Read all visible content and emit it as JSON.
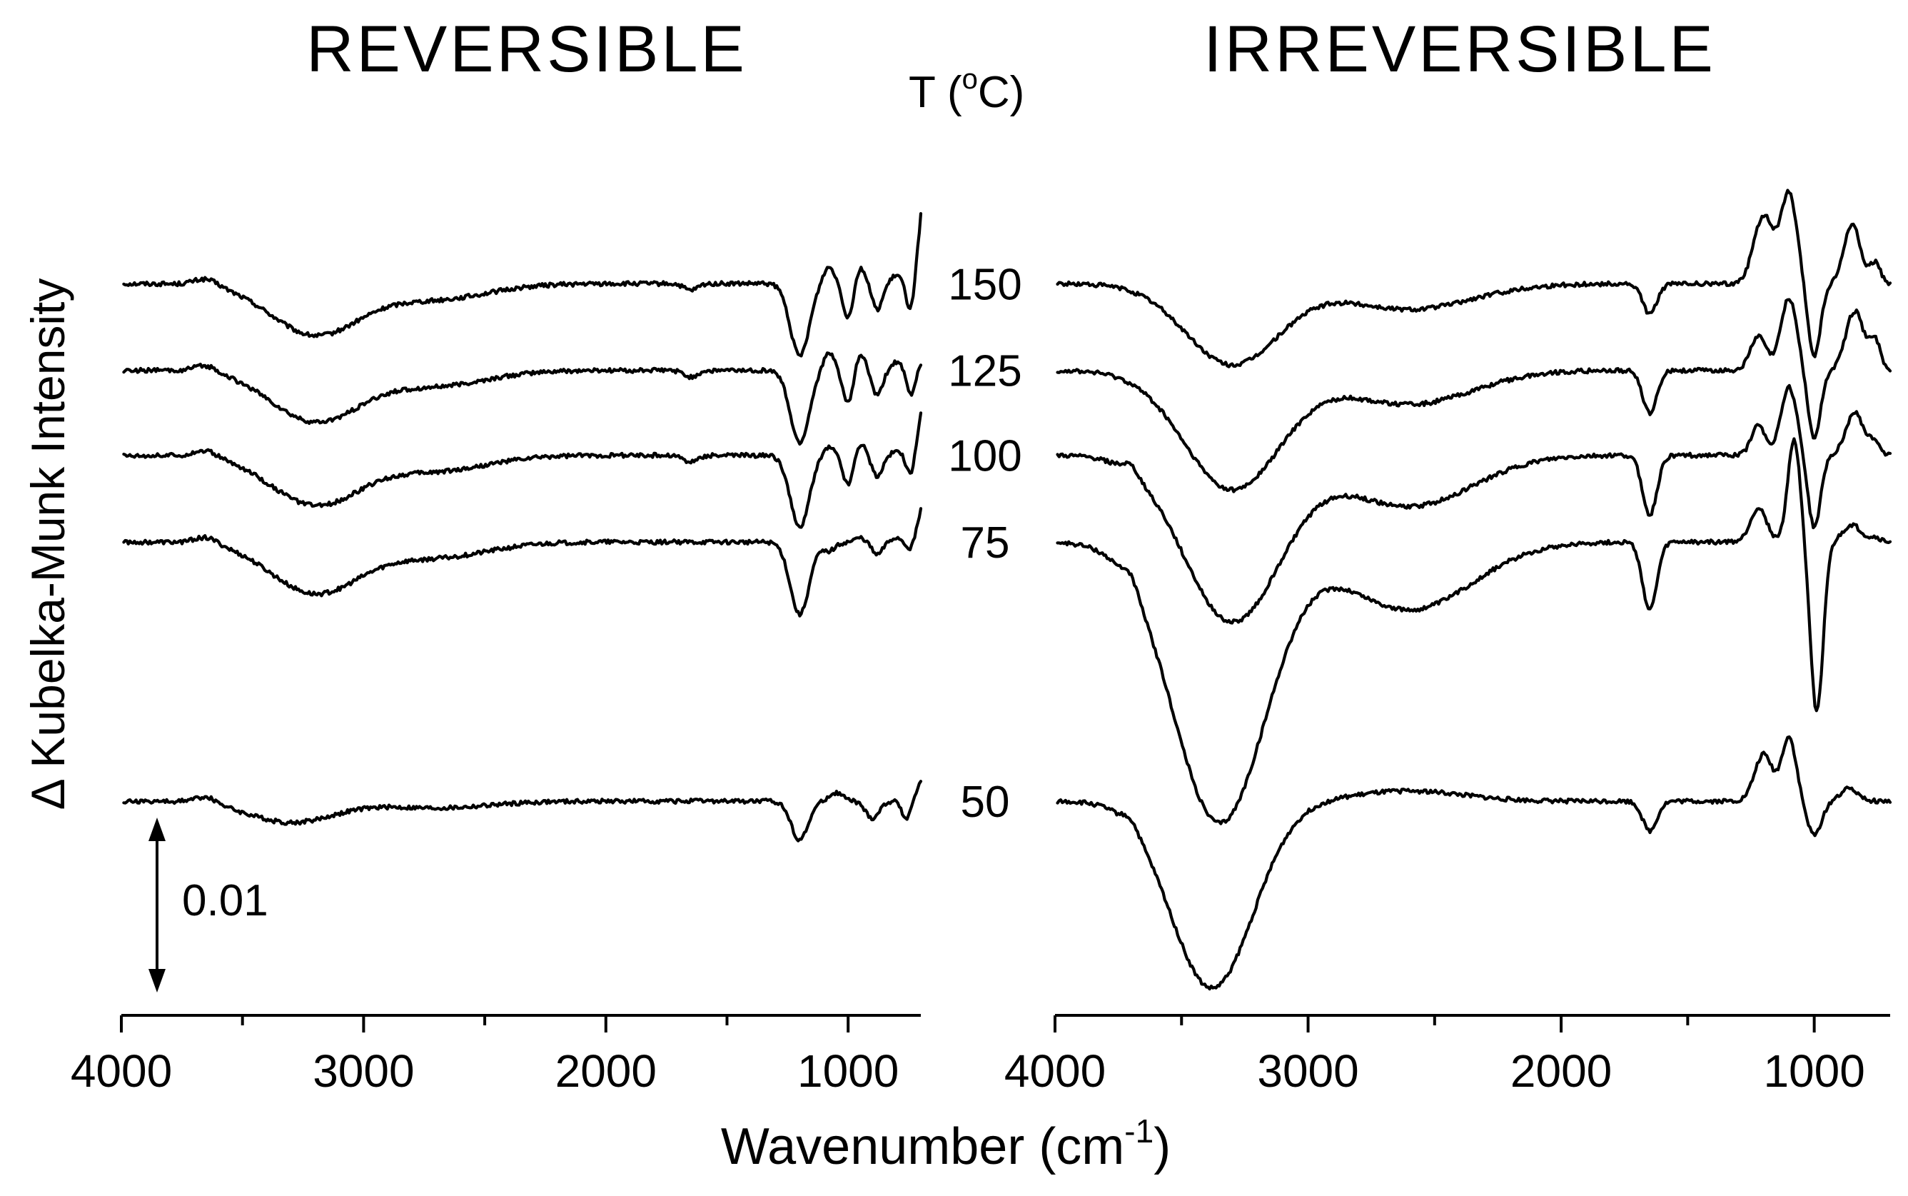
{
  "chart_data": [
    {
      "type": "line",
      "title": "REVERSIBLE",
      "xlabel": "Wavenumber (cm",
      "xlabel_superscript": "-1",
      "xlabel_suffix": ")",
      "ylabel": "Δ Kubelka-Munk Intensity",
      "xlim": [
        4000,
        700
      ],
      "x_ticks": [
        4000,
        3000,
        2000,
        1000
      ],
      "x_minor_ticks": [
        3500,
        2500,
        1500
      ],
      "legend_title": "T (",
      "legend_title_sup": "o",
      "legend_title_suffix": "C)",
      "scale_bar": {
        "label": "0.01",
        "value": 0.01
      },
      "series": [
        {
          "name": "150",
          "baseline": 0.0372,
          "features": [
            [
              3650,
              0.0008,
              70
            ],
            [
              3200,
              -0.006,
              260
            ],
            [
              2700,
              -0.0018,
              300
            ],
            [
              1650,
              -0.0008,
              40
            ],
            [
              1200,
              -0.0085,
              55
            ],
            [
              1080,
              0.002,
              35
            ],
            [
              1000,
              -0.004,
              30
            ],
            [
              950,
              0.002,
              30
            ],
            [
              880,
              -0.003,
              30
            ],
            [
              800,
              0.001,
              30
            ],
            [
              740,
              -0.0035,
              25
            ]
          ],
          "tail": 0.0085
        },
        {
          "name": "125",
          "baseline": 0.027,
          "features": [
            [
              3650,
              0.0008,
              70
            ],
            [
              3200,
              -0.006,
              260
            ],
            [
              2700,
              -0.0018,
              300
            ],
            [
              1650,
              -0.0008,
              40
            ],
            [
              1200,
              -0.0085,
              55
            ],
            [
              1080,
              0.002,
              35
            ],
            [
              1000,
              -0.004,
              30
            ],
            [
              950,
              0.002,
              30
            ],
            [
              880,
              -0.003,
              30
            ],
            [
              800,
              0.001,
              30
            ],
            [
              740,
              -0.003,
              25
            ]
          ],
          "tail": 0.001
        },
        {
          "name": "100",
          "baseline": 0.017,
          "features": [
            [
              3650,
              0.0008,
              70
            ],
            [
              3200,
              -0.0058,
              260
            ],
            [
              2700,
              -0.0018,
              300
            ],
            [
              1650,
              -0.0008,
              40
            ],
            [
              1200,
              -0.0085,
              55
            ],
            [
              1080,
              0.001,
              35
            ],
            [
              1000,
              -0.0035,
              30
            ],
            [
              950,
              0.0015,
              30
            ],
            [
              880,
              -0.0025,
              30
            ],
            [
              800,
              0.0005,
              30
            ],
            [
              740,
              -0.0025,
              25
            ]
          ],
          "tail": 0.005
        },
        {
          "name": "75",
          "baseline": 0.0068,
          "features": [
            [
              3650,
              0.0008,
              70
            ],
            [
              3200,
              -0.006,
              260
            ],
            [
              2700,
              -0.0018,
              300
            ],
            [
              1200,
              -0.0085,
              55
            ],
            [
              1080,
              -0.001,
              40
            ],
            [
              950,
              0.0005,
              30
            ],
            [
              880,
              -0.0015,
              30
            ],
            [
              800,
              0.0005,
              30
            ],
            [
              740,
              -0.001,
              25
            ]
          ],
          "tail": 0.004
        },
        {
          "name": "50",
          "baseline": -0.0237,
          "features": [
            [
              3650,
              0.0008,
              70
            ],
            [
              3300,
              -0.0025,
              250
            ],
            [
              2700,
              -0.0008,
              300
            ],
            [
              1200,
              -0.0045,
              50
            ],
            [
              1050,
              0.001,
              40
            ],
            [
              900,
              -0.002,
              40
            ],
            [
              760,
              -0.002,
              25
            ]
          ],
          "tail": 0.0025
        }
      ]
    },
    {
      "type": "line",
      "title": "IRREVERSIBLE",
      "xlabel": "Wavenumber (cm",
      "xlabel_superscript": "-1",
      "xlabel_suffix": ")",
      "xlim": [
        4000,
        700
      ],
      "x_ticks": [
        4000,
        3000,
        2000,
        1000
      ],
      "x_minor_ticks": [
        3500,
        2500,
        1500
      ],
      "series": [
        {
          "name": "150",
          "baseline": 0.0372,
          "features": [
            [
              3300,
              -0.0095,
              260
            ],
            [
              2600,
              -0.003,
              350
            ],
            [
              1650,
              -0.0035,
              40
            ],
            [
              1200,
              0.008,
              55
            ],
            [
              1100,
              0.0105,
              45
            ],
            [
              1000,
              -0.0085,
              35
            ],
            [
              850,
              0.007,
              45
            ],
            [
              760,
              0.0025,
              30
            ]
          ],
          "tail": 0.0
        },
        {
          "name": "125",
          "baseline": 0.027,
          "features": [
            [
              3300,
              -0.014,
              270
            ],
            [
              2600,
              -0.004,
              350
            ],
            [
              1650,
              -0.005,
              40
            ],
            [
              1220,
              0.004,
              45
            ],
            [
              1100,
              0.0085,
              45
            ],
            [
              1000,
              -0.008,
              35
            ],
            [
              840,
              0.007,
              50
            ],
            [
              760,
              0.0035,
              30
            ]
          ],
          "tail": 0.0
        },
        {
          "name": "100",
          "baseline": 0.017,
          "features": [
            [
              3700,
              0.001,
              40
            ],
            [
              3300,
              -0.0195,
              270
            ],
            [
              2600,
              -0.006,
              350
            ],
            [
              1650,
              -0.007,
              40
            ],
            [
              1220,
              0.0035,
              40
            ],
            [
              1100,
              0.008,
              45
            ],
            [
              1000,
              -0.0085,
              35
            ],
            [
              840,
              0.005,
              50
            ],
            [
              760,
              0.0015,
              30
            ]
          ],
          "tail": 0.0
        },
        {
          "name": "75",
          "baseline": 0.0068,
          "features": [
            [
              3700,
              0.0015,
              40
            ],
            [
              3350,
              -0.033,
              260
            ],
            [
              2600,
              -0.008,
              350
            ],
            [
              1650,
              -0.008,
              40
            ],
            [
              1220,
              0.004,
              45
            ],
            [
              1080,
              0.012,
              35
            ],
            [
              990,
              -0.02,
              35
            ],
            [
              850,
              0.002,
              50
            ],
            [
              760,
              0.0005,
              30
            ]
          ],
          "tail": 0.0
        },
        {
          "name": "50",
          "baseline": -0.0237,
          "features": [
            [
              3700,
              0.001,
              40
            ],
            [
              3380,
              -0.022,
              230
            ],
            [
              2600,
              0.0012,
              300
            ],
            [
              1650,
              -0.0035,
              40
            ],
            [
              1200,
              0.0055,
              50
            ],
            [
              1100,
              0.0075,
              40
            ],
            [
              1000,
              -0.004,
              40
            ],
            [
              860,
              0.0015,
              50
            ]
          ],
          "tail": 0.0
        }
      ]
    }
  ]
}
